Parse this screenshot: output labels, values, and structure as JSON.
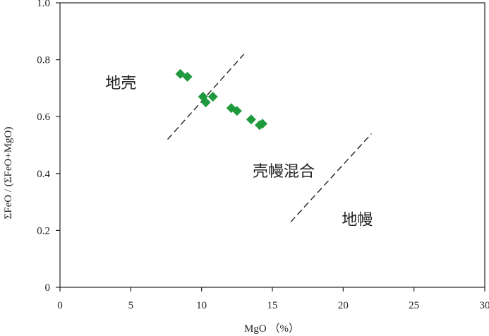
{
  "chart_data": {
    "type": "scatter",
    "xlabel": "MgO （%）",
    "ylabel": "ΣFeO / (ΣFeO+MgO)",
    "xlim": [
      0,
      30
    ],
    "ylim": [
      0,
      1.0
    ],
    "x_ticks": [
      "0",
      "5",
      "10",
      "15",
      "20",
      "25",
      "30"
    ],
    "y_ticks": [
      "0",
      "0.2",
      "0.4",
      "0.6",
      "0.8",
      "1.0"
    ],
    "marker_color": "#1e9a3c",
    "marker_shape": "diamond",
    "points": [
      {
        "x": 8.5,
        "y": 0.75
      },
      {
        "x": 9.0,
        "y": 0.74
      },
      {
        "x": 10.1,
        "y": 0.67
      },
      {
        "x": 10.3,
        "y": 0.65
      },
      {
        "x": 10.8,
        "y": 0.67
      },
      {
        "x": 12.1,
        "y": 0.63
      },
      {
        "x": 12.5,
        "y": 0.62
      },
      {
        "x": 13.5,
        "y": 0.59
      },
      {
        "x": 14.1,
        "y": 0.57
      },
      {
        "x": 14.3,
        "y": 0.575
      }
    ],
    "divider_lines": [
      {
        "x1": 7.6,
        "y1": 0.52,
        "x2": 13.0,
        "y2": 0.82
      },
      {
        "x1": 16.3,
        "y1": 0.23,
        "x2": 22.0,
        "y2": 0.54
      }
    ],
    "region_labels": [
      {
        "text": "地壳",
        "x": 4.3,
        "y": 0.7
      },
      {
        "text": "壳幔混合",
        "x": 15.8,
        "y": 0.39
      },
      {
        "text": "地幔",
        "x": 21.0,
        "y": 0.22
      }
    ]
  }
}
